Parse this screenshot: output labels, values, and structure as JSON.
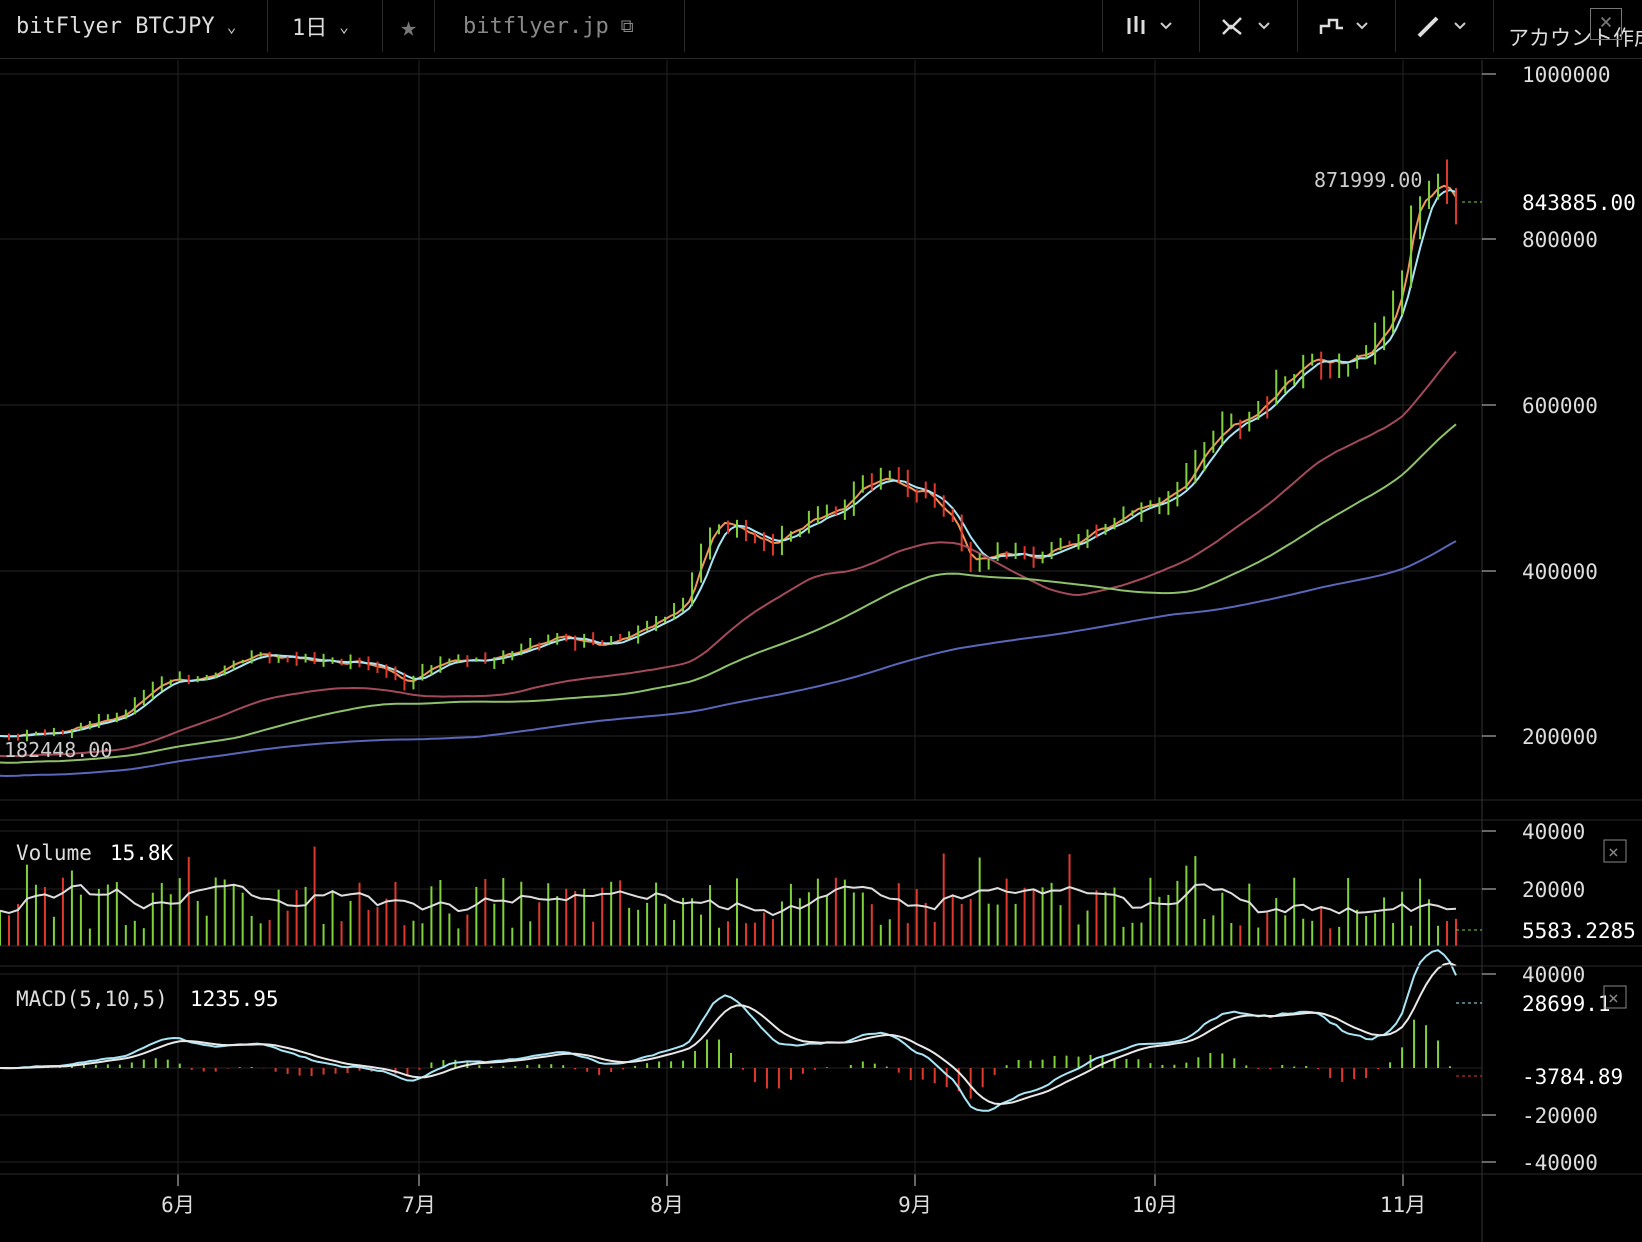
{
  "toolbar": {
    "symbol": "bitFlyer BTCJPY",
    "interval": "1日",
    "star_icon": "star-icon",
    "site": "bitflyer.jp",
    "account_text": "アカウント作成",
    "tools": [
      "bar-style-icon",
      "indicator-icon",
      "step-line-icon",
      "pencil-icon"
    ]
  },
  "price_panel": {
    "high_label": "871999.00",
    "low_label": "182448.00",
    "last_price": "843885.00",
    "ticks": [
      "1000000",
      "800000",
      "600000",
      "400000",
      "200000"
    ]
  },
  "volume_panel": {
    "title": "Volume",
    "value": "15.8K",
    "ticks": [
      "40000",
      "20000"
    ],
    "last": "5583.2285"
  },
  "macd_panel": {
    "title": "MACD(5,10,5)",
    "value": "1235.95",
    "ticks": [
      "40000",
      "-20000",
      "-40000"
    ],
    "last_macd": "28699.1",
    "last_hist": "-3784.89"
  },
  "x_axis": {
    "labels": [
      "6月",
      "7月",
      "8月",
      "9月",
      "10月",
      "11月"
    ]
  },
  "colors": {
    "up": "#7fd23a",
    "down": "#e0392b",
    "ma5": "#f0955a",
    "ma10": "#a8e6f5",
    "ma30": "#a34a5a",
    "ma60": "#8fc06a",
    "ma120": "#5a66b8"
  },
  "chart_data": {
    "type": "candlestick",
    "x_axis": [
      "6月",
      "7月",
      "8月",
      "9月",
      "10月",
      "11月"
    ],
    "ylim": [
      130000,
      1050000
    ],
    "price_points": [
      [
        0,
        200000
      ],
      [
        20,
        205000
      ],
      [
        40,
        225000
      ],
      [
        55,
        270000
      ],
      [
        62,
        265000
      ],
      [
        75,
        280000
      ],
      [
        84,
        300000
      ],
      [
        95,
        295000
      ],
      [
        108,
        290000
      ],
      [
        120,
        290000
      ],
      [
        128,
        282000
      ],
      [
        135,
        265000
      ],
      [
        150,
        295000
      ],
      [
        160,
        290000
      ],
      [
        172,
        300000
      ],
      [
        186,
        320000
      ],
      [
        200,
        310000
      ],
      [
        215,
        330000
      ],
      [
        228,
        360000
      ],
      [
        238,
        460000
      ],
      [
        245,
        455000
      ],
      [
        255,
        430000
      ],
      [
        270,
        460000
      ],
      [
        280,
        475000
      ],
      [
        290,
        510000
      ],
      [
        300,
        505000
      ],
      [
        310,
        490000
      ],
      [
        318,
        460000
      ],
      [
        322,
        415000
      ],
      [
        332,
        420000
      ],
      [
        345,
        415000
      ],
      [
        360,
        440000
      ],
      [
        375,
        470000
      ],
      [
        385,
        480000
      ],
      [
        395,
        505000
      ],
      [
        402,
        550000
      ],
      [
        410,
        580000
      ],
      [
        418,
        585000
      ],
      [
        428,
        625000
      ],
      [
        438,
        660000
      ],
      [
        448,
        650000
      ],
      [
        458,
        670000
      ],
      [
        466,
        725000
      ],
      [
        472,
        850000
      ],
      [
        480,
        862000
      ],
      [
        487,
        844000
      ]
    ],
    "last_close": 843885,
    "period_high": 871999,
    "period_low": 182448,
    "volume_max": 40000,
    "macd_range": [
      -40000,
      40000
    ]
  }
}
